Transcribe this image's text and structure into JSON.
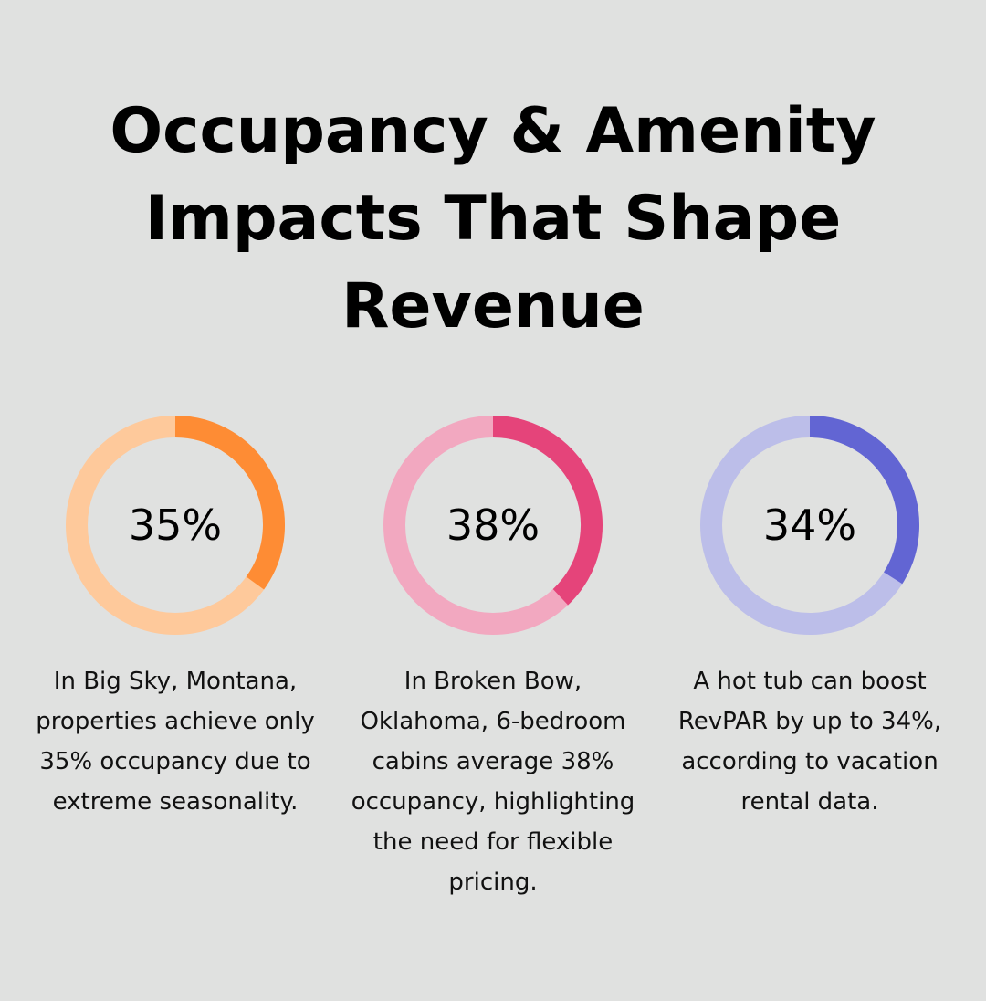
{
  "title": "Occupancy & Amenity Impacts That Shape Revenue",
  "chart_data": [
    {
      "type": "pie",
      "style": "donut",
      "value_label": "35%",
      "values": [
        35,
        65
      ],
      "colors": {
        "highlight": "#fe8c34",
        "track": "#fec99b"
      },
      "caption": "In Big Sky, Montana, properties achieve only 35% occupancy due to extreme seasonality."
    },
    {
      "type": "pie",
      "style": "donut",
      "value_label": "38%",
      "values": [
        38,
        62
      ],
      "colors": {
        "highlight": "#e5447a",
        "track": "#f2a8c0"
      },
      "caption": "In Broken Bow, Oklahoma, 6-bedroom cabins average 38% occupancy, highlighting the need for flexible pricing."
    },
    {
      "type": "pie",
      "style": "donut",
      "value_label": "34%",
      "values": [
        34,
        66
      ],
      "colors": {
        "highlight": "#6265d3",
        "track": "#bcbee9"
      },
      "caption": "A hot tub can boost RevPAR by up to 34%, according to vacation rental data."
    }
  ]
}
